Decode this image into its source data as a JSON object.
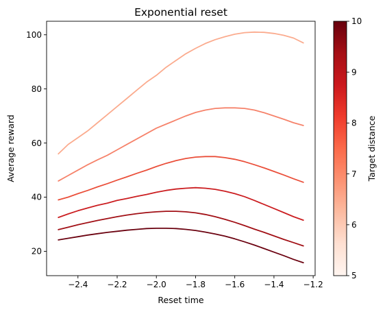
{
  "chart_data": {
    "type": "line",
    "title": "Exponential reset",
    "xlabel": "Reset time",
    "ylabel": "Average reward",
    "xlim": [
      -2.56,
      -1.19
    ],
    "ylim": [
      11,
      105
    ],
    "xticks": [
      -2.4,
      -2.2,
      -2.0,
      -1.8,
      -1.6,
      -1.4,
      -1.2
    ],
    "xtick_labels": [
      "−2.4",
      "−2.2",
      "−2.0",
      "−1.8",
      "−1.6",
      "−1.4",
      "−1.2"
    ],
    "yticks": [
      20,
      40,
      60,
      80,
      100
    ],
    "ytick_labels": [
      "20",
      "40",
      "60",
      "80",
      "100"
    ],
    "grid": false,
    "x": [
      -2.5,
      -2.45,
      -2.4,
      -2.35,
      -2.3,
      -2.25,
      -2.2,
      -2.15,
      -2.1,
      -2.05,
      -2.0,
      -1.95,
      -1.9,
      -1.85,
      -1.8,
      -1.75,
      -1.7,
      -1.65,
      -1.6,
      -1.55,
      -1.5,
      -1.45,
      -1.4,
      -1.35,
      -1.3,
      -1.25
    ],
    "series": [
      {
        "color": "#fbab8e",
        "values": [
          56,
          59.5,
          62,
          64.5,
          67.5,
          70.5,
          73.5,
          76.5,
          79.5,
          82.5,
          85,
          88,
          90.5,
          93,
          95,
          96.8,
          98.2,
          99.3,
          100.2,
          100.8,
          101,
          100.9,
          100.5,
          99.8,
          98.8,
          97
        ]
      },
      {
        "color": "#f6826a",
        "values": [
          46,
          48,
          50,
          52,
          53.8,
          55.5,
          57.5,
          59.5,
          61.5,
          63.5,
          65.5,
          67,
          68.5,
          70,
          71.3,
          72.2,
          72.8,
          73,
          73,
          72.8,
          72.2,
          71.2,
          70,
          68.8,
          67.5,
          66.5
        ]
      },
      {
        "color": "#ea4f3a",
        "values": [
          39,
          40,
          41.3,
          42.5,
          43.8,
          45,
          46.3,
          47.5,
          48.8,
          50,
          51.3,
          52.5,
          53.5,
          54.3,
          54.8,
          55,
          55,
          54.6,
          54,
          53.1,
          52,
          50.8,
          49.5,
          48.2,
          46.8,
          45.5
        ]
      },
      {
        "color": "#cb1d20",
        "values": [
          32.5,
          33.8,
          35,
          36,
          37,
          37.8,
          38.8,
          39.5,
          40.3,
          41,
          41.8,
          42.5,
          43,
          43.3,
          43.5,
          43.3,
          42.9,
          42.2,
          41.3,
          40.2,
          38.8,
          37.3,
          35.8,
          34.3,
          32.8,
          31.5
        ]
      },
      {
        "color": "#a10f15",
        "values": [
          28,
          28.9,
          29.8,
          30.6,
          31.4,
          32.1,
          32.8,
          33.4,
          33.9,
          34.3,
          34.6,
          34.8,
          34.8,
          34.6,
          34.2,
          33.6,
          32.8,
          31.8,
          30.7,
          29.5,
          28.2,
          27,
          25.7,
          24.4,
          23.2,
          22
        ]
      },
      {
        "color": "#6b0210",
        "values": [
          24.2,
          24.8,
          25.4,
          26,
          26.5,
          27,
          27.4,
          27.8,
          28.1,
          28.4,
          28.5,
          28.5,
          28.4,
          28.1,
          27.7,
          27.1,
          26.4,
          25.6,
          24.6,
          23.5,
          22.3,
          21,
          19.7,
          18.4,
          17,
          15.8
        ]
      }
    ],
    "colorbar": {
      "label": "Target distance",
      "range": [
        5,
        10
      ],
      "ticks": [
        "5",
        "6",
        "7",
        "8",
        "9",
        "10"
      ],
      "colormap": "Reds",
      "stops": [
        "#fff5f0",
        "#fee0d2",
        "#fcbba1",
        "#fc9272",
        "#fb6a4a",
        "#ef3b2c",
        "#cb181d",
        "#a50f15",
        "#67000d"
      ]
    }
  }
}
